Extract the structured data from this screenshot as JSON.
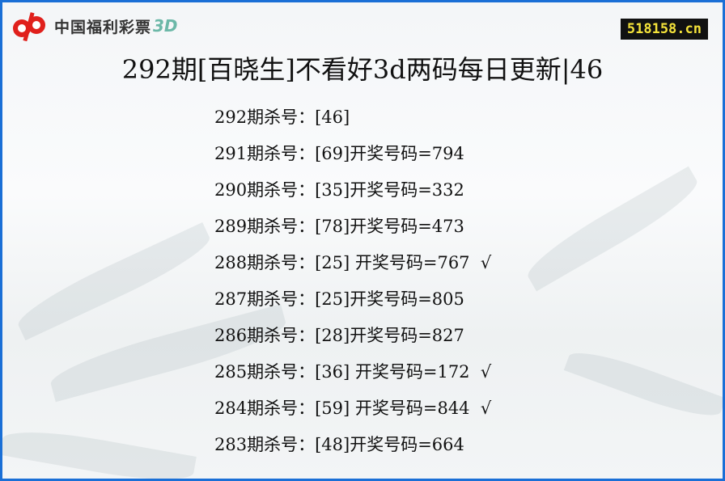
{
  "logo": {
    "text": "中国福利彩票",
    "suffix": "3D",
    "colors": {
      "mark": "#e0201c",
      "suffix": "#6cb8a8"
    }
  },
  "badge": "518158.cn",
  "title": "292期[百晓生]不看好3d两码每日更新|46",
  "rows": [
    "292期杀号：[46]",
    "291期杀号：[69]开奖号码=794",
    "290期杀号：[35]开奖号码=332",
    "289期杀号：[78]开奖号码=473",
    "288期杀号：[25] 开奖号码=767  √",
    "287期杀号：[25]开奖号码=805",
    "286期杀号：[28]开奖号码=827",
    "285期杀号：[36] 开奖号码=172  √",
    "284期杀号：[59] 开奖号码=844  √",
    "283期杀号：[48]开奖号码=664"
  ],
  "colors": {
    "border": "#1a6fd6",
    "badge_bg": "#111111",
    "badge_text": "#f4e23a"
  }
}
